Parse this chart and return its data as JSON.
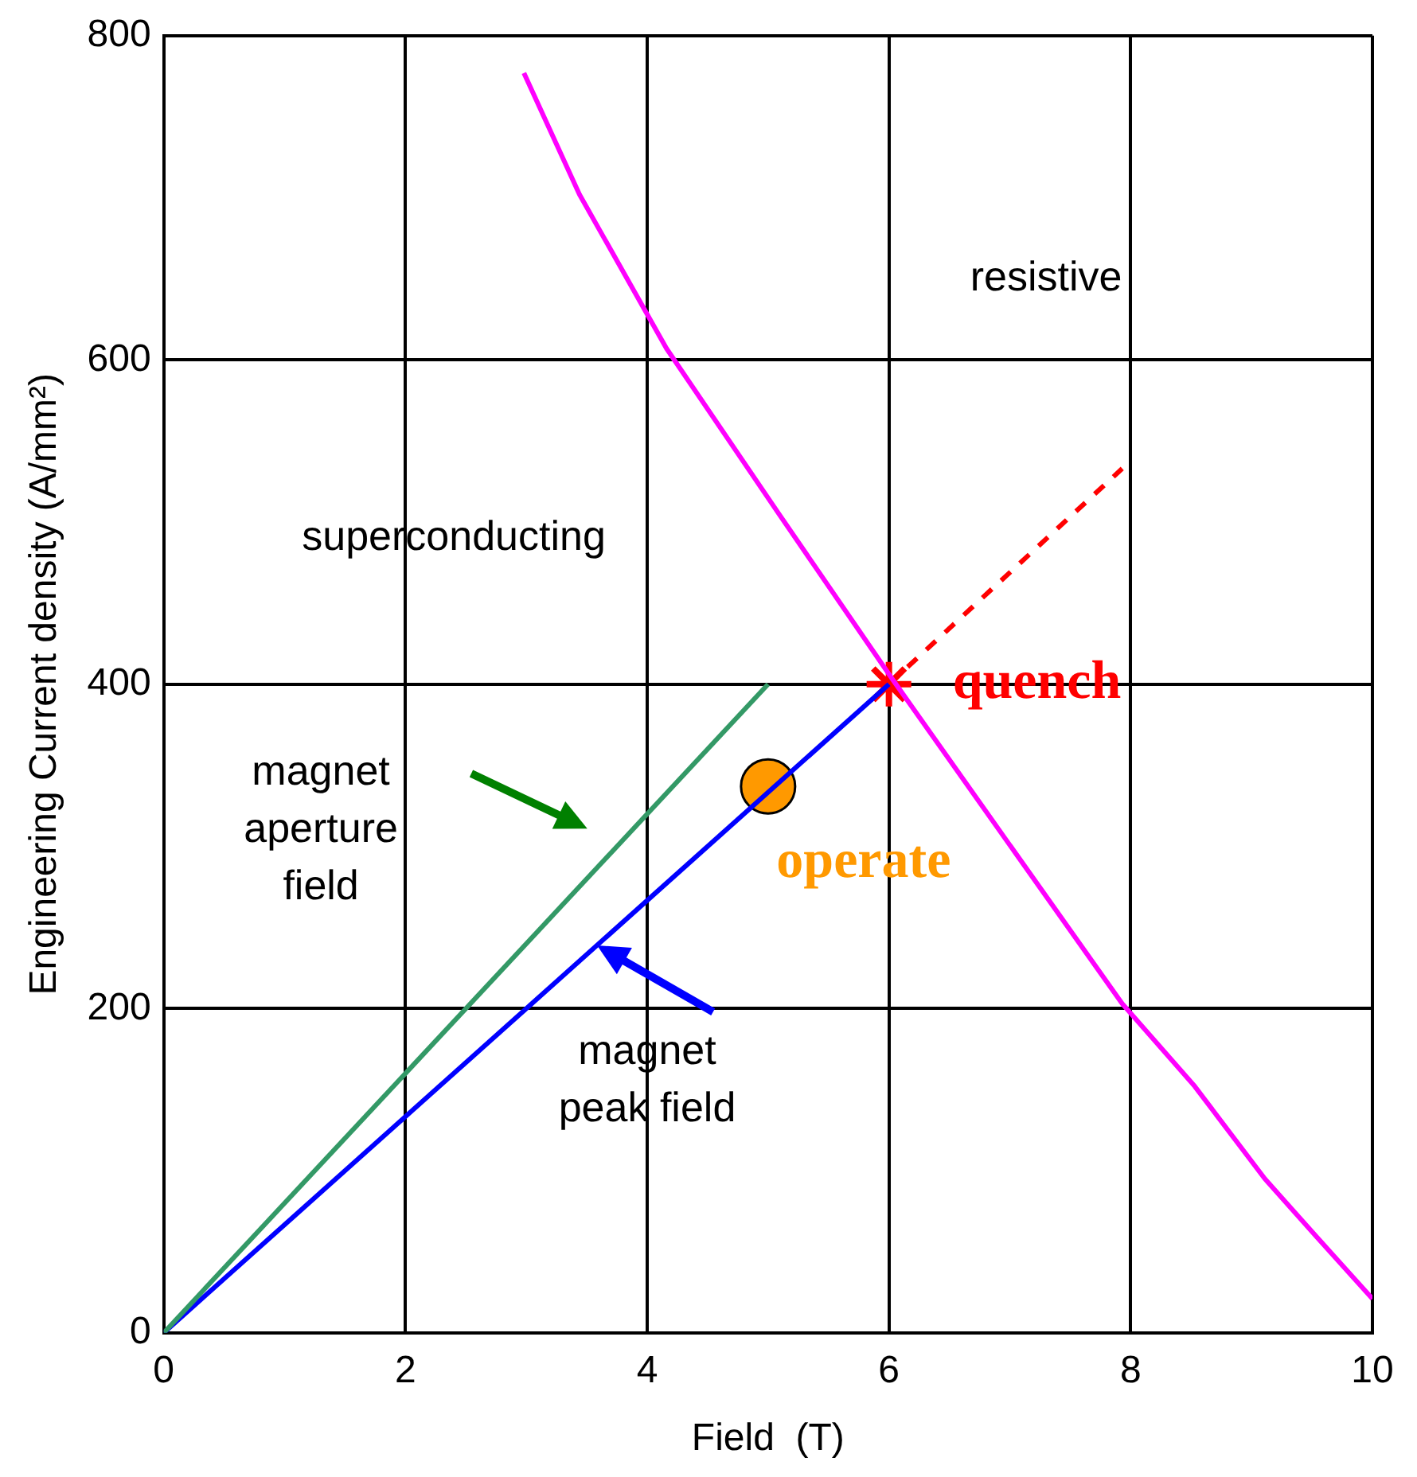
{
  "chart_data": {
    "type": "line",
    "xlabel": "Field  (T)",
    "ylabel": "Engineering Current density (A/mm²)",
    "xlim": [
      0,
      10
    ],
    "ylim": [
      0,
      800
    ],
    "xticks": [
      0,
      2,
      4,
      6,
      8,
      10
    ],
    "yticks": [
      0,
      200,
      400,
      600,
      800
    ],
    "grid": true,
    "series": [
      {
        "color": "#ff00ff",
        "x": [
          2.98,
          3.44,
          4.16,
          5.09,
          6.03,
          6.96,
          7.93,
          8.53,
          9.11,
          9.54,
          10
        ],
        "values": [
          777,
          702,
          607,
          505,
          403,
          305,
          203,
          152,
          95,
          59,
          21
        ]
      },
      {
        "color": "#339966",
        "x": [
          0,
          5
        ],
        "values": [
          0,
          400
        ]
      },
      {
        "color": "#0000ff",
        "x": [
          0,
          6
        ],
        "values": [
          0,
          400
        ]
      },
      {
        "color": "#ff0000",
        "line_style": "dashed",
        "x": [
          6,
          7.93
        ],
        "values": [
          400,
          533
        ]
      },
      {
        "type": "scatter",
        "name": "quench",
        "color": "#ff0000",
        "marker": "cross",
        "x": [
          6
        ],
        "values": [
          400
        ]
      },
      {
        "type": "scatter",
        "name": "operate",
        "color": "#ff9900",
        "marker": "circle",
        "x": [
          5
        ],
        "values": [
          337
        ]
      }
    ],
    "annotations": [
      "resistive",
      "superconducting",
      "magnet\naperture\nfield",
      "magnet\npeak field"
    ]
  }
}
